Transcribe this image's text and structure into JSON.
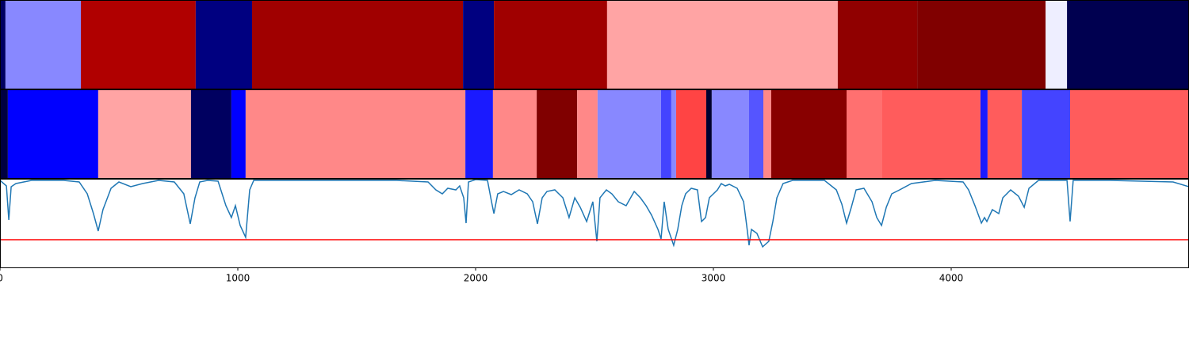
{
  "chart_data": [
    {
      "type": "band",
      "xlim": [
        0,
        5000
      ],
      "bins": [
        0,
        23,
        340,
        823,
        1060,
        1947,
        2077,
        2553,
        3523,
        3857,
        4397,
        4487,
        5000
      ],
      "colors": [
        "#000060",
        "#8888ff",
        "#b00000",
        "#000080",
        "#a00000",
        "#000080",
        "#a00000",
        "#ffa4a4",
        "#900000",
        "#800000",
        "#eeeeff",
        "#000050"
      ]
    },
    {
      "type": "band",
      "xlim": [
        0,
        5000
      ],
      "bins": [
        0,
        33,
        413,
        803,
        973,
        1033,
        1957,
        2073,
        2257,
        2427,
        2513,
        2780,
        2823,
        2843,
        2970,
        2993,
        3150,
        3210,
        3243,
        3560,
        3710,
        4123,
        4153,
        4297,
        4500,
        5000
      ],
      "colors": [
        "#000040",
        "#0000ff",
        "#ffa4a4",
        "#000060",
        "#0000ff",
        "#ff8888",
        "#1a1aff",
        "#ff8888",
        "#800000",
        "#ff8888",
        "#8888ff",
        "#4444ff",
        "#8888ff",
        "#ff4444",
        "#000030",
        "#8888ff",
        "#5555ff",
        "#ff8888",
        "#880000",
        "#ff7070",
        "#ff5c5c",
        "#1a1aff",
        "#ff5c5c",
        "#4444ff",
        "#ff5c5c"
      ]
    },
    {
      "type": "line",
      "xlim": [
        0,
        5000
      ],
      "ylim": [
        0,
        112
      ],
      "xticks": [
        0,
        1000,
        2000,
        3000,
        4000
      ],
      "hline": 35,
      "hline_color": "#ff0000",
      "series": [
        {
          "color": "#1f77b4",
          "x": [
            0,
            27,
            37,
            47,
            67,
            133,
            267,
            333,
            367,
            393,
            413,
            433,
            467,
            500,
            550,
            600,
            667,
            733,
            773,
            800,
            820,
            840,
            873,
            917,
            950,
            973,
            990,
            1010,
            1033,
            1050,
            1067,
            1200,
            1667,
            1800,
            1833,
            1860,
            1883,
            1917,
            1933,
            1950,
            1960,
            1970,
            2000,
            2050,
            2067,
            2077,
            2093,
            2117,
            2150,
            2183,
            2217,
            2240,
            2260,
            2280,
            2300,
            2333,
            2367,
            2393,
            2417,
            2440,
            2467,
            2493,
            2510,
            2523,
            2550,
            2573,
            2600,
            2633,
            2667,
            2693,
            2717,
            2740,
            2767,
            2780,
            2793,
            2810,
            2833,
            2850,
            2867,
            2883,
            2907,
            2933,
            2950,
            2967,
            2983,
            3000,
            3017,
            3033,
            3050,
            3067,
            3100,
            3127,
            3140,
            3150,
            3160,
            3183,
            3207,
            3233,
            3250,
            3267,
            3293,
            3333,
            3467,
            3517,
            3540,
            3560,
            3580,
            3600,
            3633,
            3667,
            3687,
            3707,
            3727,
            3750,
            3783,
            3833,
            3933,
            4050,
            4073,
            4100,
            4127,
            4140,
            4150,
            4173,
            4200,
            4217,
            4250,
            4283,
            4307,
            4327,
            4367,
            4487,
            4500,
            4513,
            4667,
            4933,
            5000
          ],
          "values": [
            110,
            103,
            60,
            102,
            106,
            110,
            110,
            108,
            93,
            68,
            46,
            73,
            100,
            108,
            102,
            106,
            110,
            108,
            93,
            55,
            88,
            108,
            110,
            109,
            78,
            63,
            78,
            53,
            38,
            98,
            110,
            110,
            110,
            108,
            98,
            93,
            100,
            98,
            103,
            88,
            56,
            108,
            111,
            110,
            83,
            68,
            93,
            96,
            92,
            98,
            93,
            83,
            55,
            88,
            96,
            98,
            88,
            63,
            88,
            76,
            58,
            83,
            33,
            88,
            98,
            93,
            83,
            78,
            96,
            88,
            78,
            66,
            48,
            36,
            83,
            48,
            28,
            48,
            78,
            93,
            100,
            98,
            58,
            63,
            88,
            93,
            98,
            106,
            103,
            105,
            100,
            83,
            53,
            28,
            48,
            43,
            26,
            33,
            58,
            88,
            106,
            110,
            110,
            98,
            80,
            56,
            76,
            98,
            100,
            83,
            63,
            53,
            76,
            93,
            98,
            106,
            110,
            108,
            98,
            78,
            56,
            63,
            58,
            73,
            68,
            88,
            98,
            90,
            76,
            100,
            110,
            110,
            58,
            110,
            110,
            108,
            102
          ]
        }
      ]
    }
  ]
}
